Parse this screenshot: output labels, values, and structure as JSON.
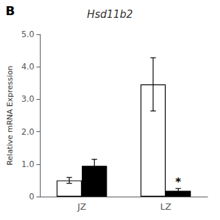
{
  "chart_data": {
    "type": "bar",
    "title": "Hsd11b2",
    "panel_label": "B",
    "ylabel": "Relative mRNA Expression",
    "categories": [
      "JZ",
      "LZ"
    ],
    "series": [
      {
        "color": "#ffffff",
        "values": [
          0.5,
          3.46
        ],
        "errors": [
          0.09,
          0.82
        ]
      },
      {
        "color": "#000000",
        "values": [
          0.95,
          0.18
        ],
        "errors": [
          0.2,
          0.07
        ],
        "annotations": [
          {
            "category": "LZ",
            "text": "*"
          }
        ]
      }
    ],
    "ylim": [
      0,
      5.0
    ],
    "yticks": [
      0,
      {
        "value": 1.0,
        "label": "1.0"
      },
      {
        "value": 2.0,
        "label": "2.0"
      },
      {
        "value": 3.0,
        "label": "3.0"
      },
      {
        "value": 4.0,
        "label": "4.0"
      },
      {
        "value": 5.0,
        "label": "5.0"
      }
    ],
    "grid": false
  }
}
